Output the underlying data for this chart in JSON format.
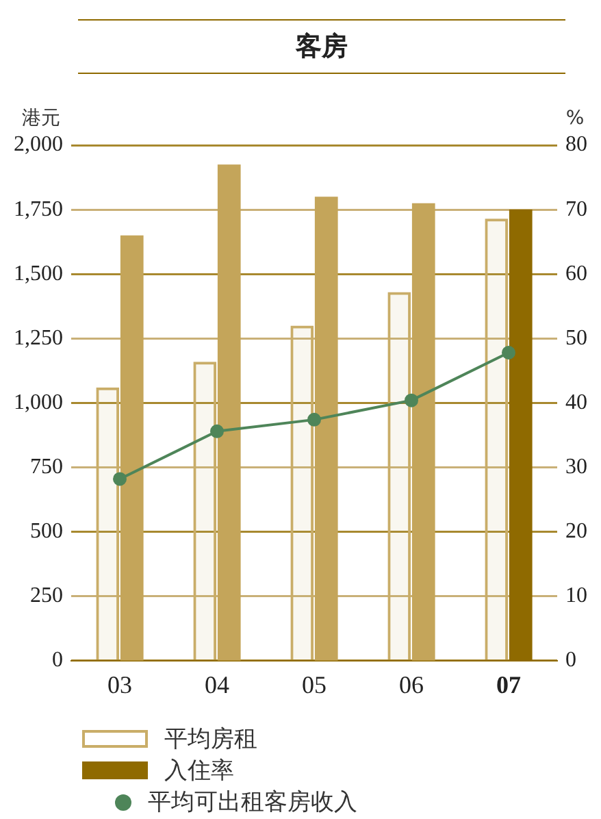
{
  "chart_data": {
    "type": "bar",
    "title": "客房",
    "ylabel": "港元",
    "y2label": "%",
    "categories": [
      "03",
      "04",
      "05",
      "06",
      "07"
    ],
    "series": [
      {
        "name": "平均房租",
        "type": "bar",
        "axis": "y",
        "color": "#c9ad68",
        "values": [
          1060,
          1160,
          1300,
          1430,
          1715
        ]
      },
      {
        "name": "入住率",
        "type": "bar",
        "axis": "y2",
        "color": "#8f6a00",
        "colors": [
          "#c4a55a",
          "#c4a55a",
          "#c4a55a",
          "#c4a55a",
          "#8f6a00"
        ],
        "values": [
          66,
          77,
          72,
          71,
          70
        ]
      },
      {
        "name": "平均可出租客房收入",
        "type": "line",
        "axis": "y",
        "color": "#4e8559",
        "marker": "circle",
        "values": [
          705,
          890,
          935,
          1010,
          1195
        ]
      }
    ],
    "ylim": [
      0,
      2000
    ],
    "yticks": [
      {
        "value": 0,
        "label": "0"
      },
      {
        "value": 250,
        "label": "250"
      },
      {
        "value": 500,
        "label": "500"
      },
      {
        "value": 750,
        "label": "750"
      },
      {
        "value": 1000,
        "label": "1,000"
      },
      {
        "value": 1250,
        "label": "1,250"
      },
      {
        "value": 1500,
        "label": "1,500"
      },
      {
        "value": 1750,
        "label": "1,750"
      },
      {
        "value": 2000,
        "label": "2,000"
      }
    ],
    "y2lim": [
      0,
      80
    ],
    "y2ticks": [
      0,
      10,
      20,
      30,
      40,
      50,
      60,
      70,
      80
    ],
    "grid": "y",
    "legend": "bottom left"
  }
}
